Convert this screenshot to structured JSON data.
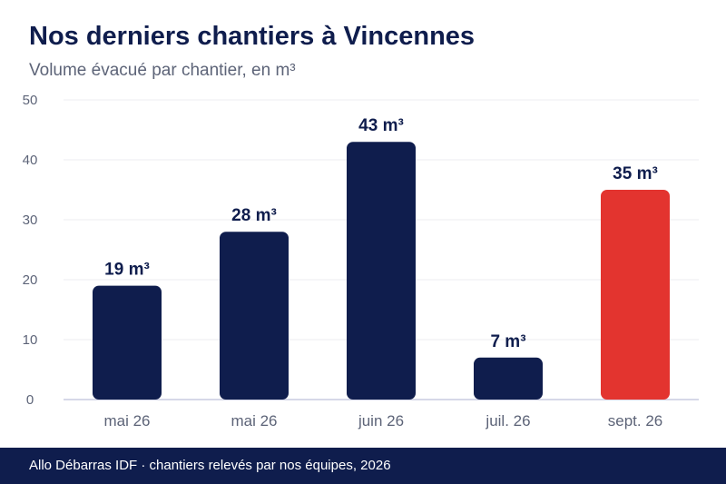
{
  "header": {
    "title": "Nos derniers chantiers à Vincennes",
    "subtitle": "Volume évacué par chantier, en m³"
  },
  "footer": {
    "source": "Allo Débarras IDF · chantiers relevés par nos équipes, 2026"
  },
  "colors": {
    "bar": "#0f1d4d",
    "highlight": "#e3342f",
    "grid": "#ececf0",
    "axis": "#c9cbe0",
    "tick_text": "#5d6478",
    "label_text": "#0f1d4d"
  },
  "chart_data": {
    "type": "bar",
    "title": "Nos derniers chantiers à Vincennes",
    "subtitle": "Volume évacué par chantier, en m³",
    "xlabel": "",
    "ylabel": "",
    "categories": [
      "mai 26",
      "mai 26",
      "juin 26",
      "juil. 26",
      "sept. 26"
    ],
    "values": [
      19,
      28,
      43,
      7,
      35
    ],
    "value_labels": [
      "19 m³",
      "28 m³",
      "43 m³",
      "7 m³",
      "35 m³"
    ],
    "highlight_index": 4,
    "ylim": [
      0,
      50
    ],
    "yticks": [
      0,
      10,
      20,
      30,
      40,
      50
    ],
    "grid": true,
    "legend": "none"
  }
}
